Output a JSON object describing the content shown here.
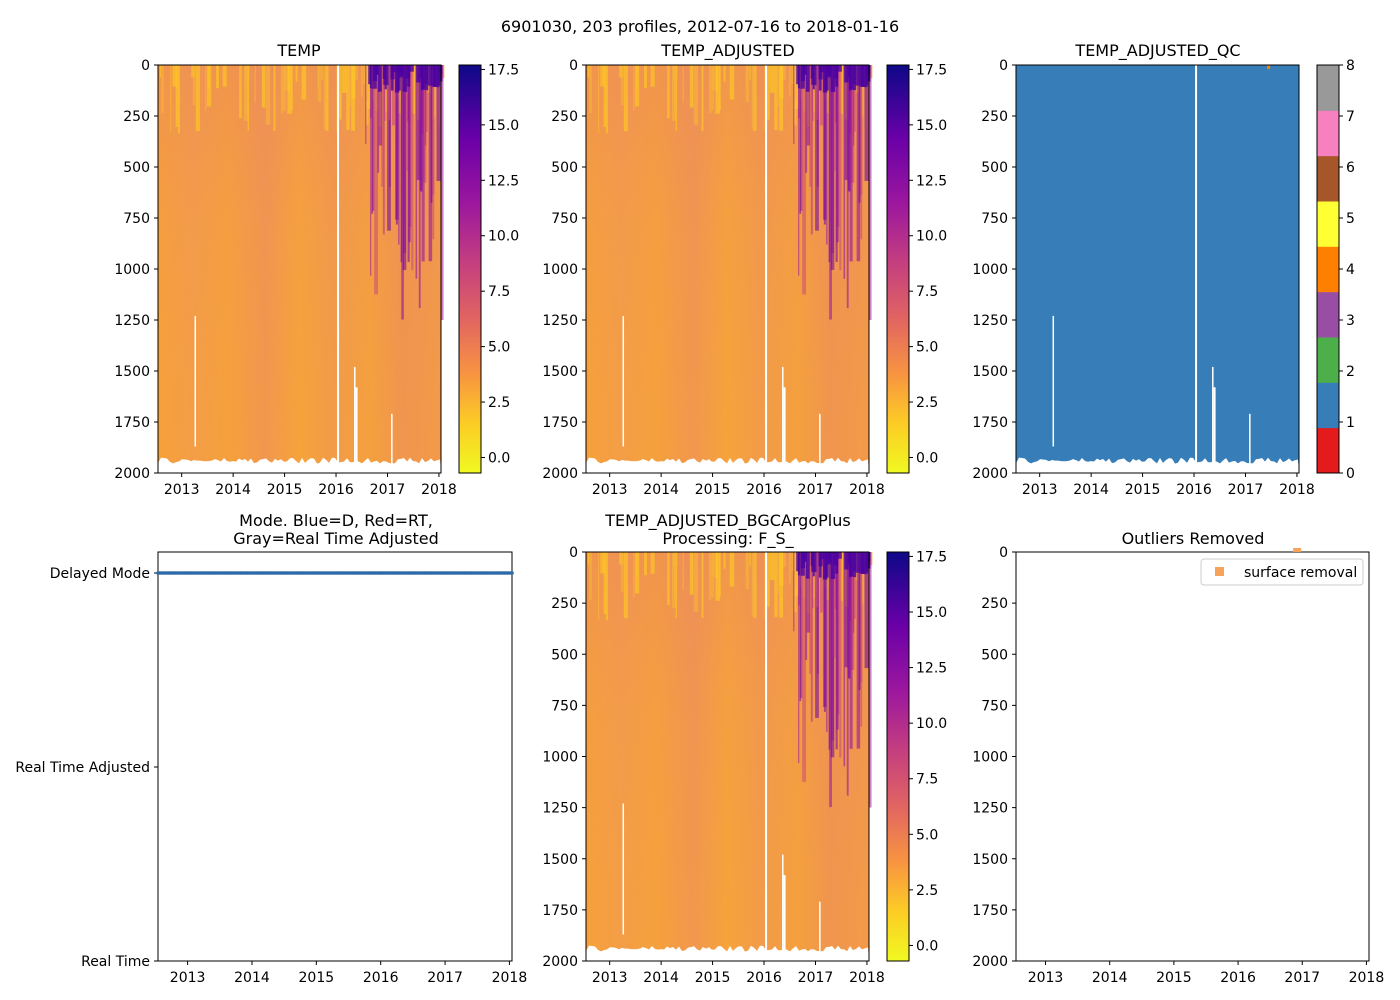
{
  "suptitle": "6901030, 203 profiles, 2012-07-16 to 2018-01-16",
  "colors": {
    "delayed_line": "#2b6aa6",
    "qc_fill": "#377eb8",
    "outlier_marker": "#f7a35c",
    "section_base": "#f5a03c"
  },
  "chart_data": [
    {
      "type": "heatmap",
      "title": "TEMP",
      "x_ticks": [
        "2013",
        "2014",
        "2015",
        "2016",
        "2017",
        "2018"
      ],
      "xlim": [
        2012.54,
        2018.04
      ],
      "y_ticks": [
        "0",
        "250",
        "500",
        "750",
        "1000",
        "1250",
        "1500",
        "1750",
        "2000"
      ],
      "ylim": [
        2000,
        0
      ],
      "colorbar": {
        "cmap": "plasma_r",
        "range": [
          -0.7,
          17.7
        ],
        "ticks": [
          "0.0",
          "2.5",
          "5.0",
          "7.5",
          "10.0",
          "12.5",
          "15.0",
          "17.5"
        ]
      }
    },
    {
      "type": "heatmap",
      "title": "TEMP_ADJUSTED",
      "x_ticks": [
        "2013",
        "2014",
        "2015",
        "2016",
        "2017",
        "2018"
      ],
      "xlim": [
        2012.54,
        2018.04
      ],
      "y_ticks": [
        "0",
        "250",
        "500",
        "750",
        "1000",
        "1250",
        "1500",
        "1750",
        "2000"
      ],
      "ylim": [
        2000,
        0
      ],
      "colorbar": {
        "cmap": "plasma_r",
        "range": [
          -0.7,
          17.7
        ],
        "ticks": [
          "0.0",
          "2.5",
          "5.0",
          "7.5",
          "10.0",
          "12.5",
          "15.0",
          "17.5"
        ]
      }
    },
    {
      "type": "heatmap",
      "title": "TEMP_ADJUSTED_QC",
      "x_ticks": [
        "2013",
        "2014",
        "2015",
        "2016",
        "2017",
        "2018"
      ],
      "xlim": [
        2012.54,
        2018.04
      ],
      "y_ticks": [
        "0",
        "250",
        "500",
        "750",
        "1000",
        "1250",
        "1500",
        "1750",
        "2000"
      ],
      "ylim": [
        2000,
        0
      ],
      "value": 1,
      "colorbar": {
        "cmap": "qc_categorical",
        "range": [
          0,
          8
        ],
        "ticks": [
          "0",
          "1",
          "2",
          "3",
          "4",
          "5",
          "6",
          "7",
          "8"
        ],
        "segments": [
          "#e41a1c",
          "#377eb8",
          "#4daf4a",
          "#984ea3",
          "#ff7f00",
          "#ffff33",
          "#a65628",
          "#f781bf",
          "#999999"
        ]
      }
    },
    {
      "type": "scatter",
      "title": "Mode. Blue=D, Red=RT,\nGray=Real Time Adjusted",
      "x_ticks": [
        "2013",
        "2014",
        "2015",
        "2016",
        "2017",
        "2018"
      ],
      "xlim": [
        2012.54,
        2018.04
      ],
      "y_categories": [
        "Delayed Mode",
        "Real Time Adjusted",
        "Real Time"
      ],
      "series": [
        {
          "name": "Delayed Mode",
          "x_range": [
            2012.54,
            2018.04
          ],
          "y": "Delayed Mode",
          "count": 203
        }
      ]
    },
    {
      "type": "heatmap",
      "title": "TEMP_ADJUSTED_BGCArgoPlus\nProcessing: F_S_",
      "x_ticks": [
        "2013",
        "2014",
        "2015",
        "2016",
        "2017",
        "2018"
      ],
      "xlim": [
        2012.54,
        2018.04
      ],
      "y_ticks": [
        "0",
        "250",
        "500",
        "750",
        "1000",
        "1250",
        "1500",
        "1750",
        "2000"
      ],
      "ylim": [
        2000,
        0
      ],
      "colorbar": {
        "cmap": "plasma_r",
        "range": [
          -0.7,
          17.7
        ],
        "ticks": [
          "0.0",
          "2.5",
          "5.0",
          "7.5",
          "10.0",
          "12.5",
          "15.0",
          "17.5"
        ]
      }
    },
    {
      "type": "scatter",
      "title": "Outliers Removed",
      "x_ticks": [
        "2013",
        "2014",
        "2015",
        "2016",
        "2017",
        "2018"
      ],
      "xlim": [
        2012.54,
        2018.04
      ],
      "y_ticks": [
        "0",
        "250",
        "500",
        "750",
        "1000",
        "1250",
        "1500",
        "1750",
        "2000"
      ],
      "ylim": [
        2000,
        0
      ],
      "legend": {
        "label": "surface removal",
        "loc": "upper right"
      },
      "series": [
        {
          "name": "surface removal",
          "points": [
            {
              "x": 2016.92,
              "y": 0
            }
          ]
        }
      ]
    }
  ]
}
